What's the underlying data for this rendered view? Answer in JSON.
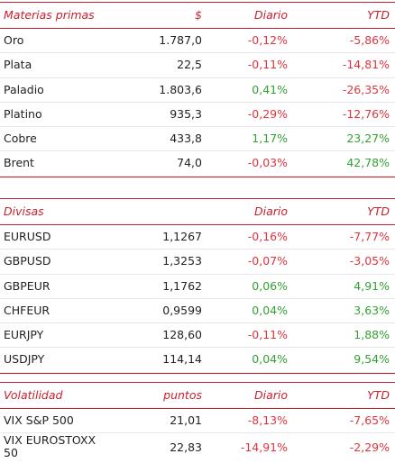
{
  "colors": {
    "accent": "#c8202c",
    "negative": "#e0353e",
    "positive": "#34a134"
  },
  "materias": {
    "header": [
      "Materias primas",
      "$",
      "Diario",
      "YTD"
    ],
    "rows": [
      {
        "name": "Oro",
        "value": "1.787,0",
        "daily": "-0,12%",
        "ytd": "-5,86%"
      },
      {
        "name": "Plata",
        "value": "22,5",
        "daily": "-0,11%",
        "ytd": "-14,81%"
      },
      {
        "name": "Paladio",
        "value": "1.803,6",
        "daily": "0,41%",
        "ytd": "-26,35%"
      },
      {
        "name": "Platino",
        "value": "935,3",
        "daily": "-0,29%",
        "ytd": "-12,76%"
      },
      {
        "name": "Cobre",
        "value": "433,8",
        "daily": "1,17%",
        "ytd": "23,27%"
      },
      {
        "name": "Brent",
        "value": "74,0",
        "daily": "-0,03%",
        "ytd": "42,78%"
      }
    ]
  },
  "divisas": {
    "header": [
      "Divisas",
      "",
      "Diario",
      "YTD"
    ],
    "rows": [
      {
        "name": "EURUSD",
        "value": "1,1267",
        "daily": "-0,16%",
        "ytd": "-7,77%"
      },
      {
        "name": "GBPUSD",
        "value": "1,3253",
        "daily": "-0,07%",
        "ytd": "-3,05%"
      },
      {
        "name": "GBPEUR",
        "value": "1,1762",
        "daily": "0,06%",
        "ytd": "4,91%"
      },
      {
        "name": "CHFEUR",
        "value": "0,9599",
        "daily": "0,04%",
        "ytd": "3,63%"
      },
      {
        "name": "EURJPY",
        "value": "128,60",
        "daily": "-0,11%",
        "ytd": "1,88%"
      },
      {
        "name": "USDJPY",
        "value": "114,14",
        "daily": "0,04%",
        "ytd": "9,54%"
      }
    ]
  },
  "volatilidad": {
    "header": [
      "Volatilidad",
      "puntos",
      "Diario",
      "YTD"
    ],
    "rows": [
      {
        "name": "VIX S&P 500",
        "value": "21,01",
        "daily": "-8,13%",
        "ytd": "-7,65%"
      },
      {
        "name_line1": "VIX EUROSTOXX",
        "name_line2": "50",
        "value": "22,83",
        "daily": "-14,91%",
        "ytd": "-2,29%"
      }
    ]
  }
}
